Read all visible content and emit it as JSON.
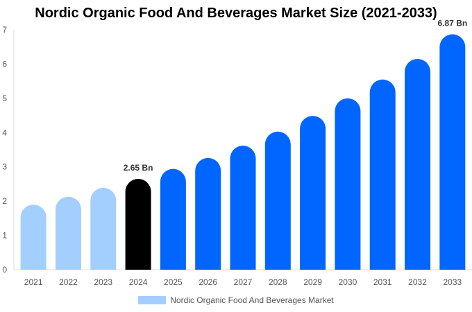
{
  "chart_data": {
    "type": "bar",
    "title": "Nordic Organic Food And Beverages Market Size (2021-2033)",
    "categories": [
      "2021",
      "2022",
      "2023",
      "2024",
      "2025",
      "2026",
      "2027",
      "2028",
      "2029",
      "2030",
      "2031",
      "2032",
      "2033"
    ],
    "series": [
      {
        "name": "Nordic Organic Food And Beverages Market",
        "values": [
          1.9,
          2.13,
          2.39,
          2.65,
          2.94,
          3.26,
          3.62,
          4.03,
          4.49,
          5.0,
          5.55,
          6.15,
          6.87
        ]
      }
    ],
    "ylim": [
      0,
      7
    ],
    "yticks": [
      0,
      1,
      2,
      3,
      4,
      5,
      6,
      7
    ],
    "data_labels": {
      "2024": "2.65 Bn",
      "2033": "6.87 Bn"
    },
    "bar_colors": {
      "historical": "#a3cfff",
      "base_year": "#000000",
      "forecast": "#0066ff"
    },
    "grid": false,
    "legend": "bottom"
  }
}
